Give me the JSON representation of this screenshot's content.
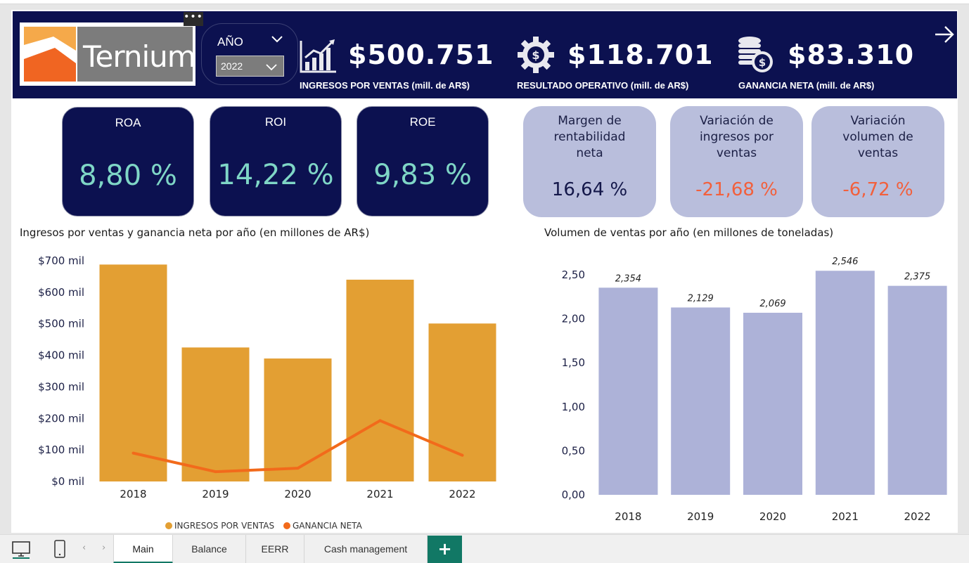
{
  "header": {
    "more_glyph": "•••",
    "logo_text": "Ternium",
    "year_slicer": {
      "label": "AÑO",
      "selected": "2022"
    },
    "kpis": [
      {
        "icon": "bar-chart-growth-icon",
        "value": "$500.751",
        "caption": "INGRESOS POR VENTAS (mill. de AR$)"
      },
      {
        "icon": "gear-dollar-icon",
        "value": "$118.701",
        "caption": "RESULTADO OPERATIVO  (mill. de AR$)"
      },
      {
        "icon": "coins-dollar-icon",
        "value": "$83.310",
        "caption": "GANANCIA NETA (mill. de AR$)"
      }
    ],
    "nav_icon": "arrow-right-icon"
  },
  "cards_dark": [
    {
      "title": "ROA",
      "value": "8,80 %"
    },
    {
      "title": "ROI",
      "value": "14,22 %"
    },
    {
      "title": "ROE",
      "value": "9,83 %"
    }
  ],
  "cards_light": [
    {
      "title": "Margen de rentabilidad neta",
      "value": "16,64 %",
      "value_color": "#14184a"
    },
    {
      "title": "Variación de ingresos por ventas",
      "value": "-21,68 %",
      "value_color": "#f2603c"
    },
    {
      "title": "Variación volumen de ventas",
      "value": "-6,72 %",
      "value_color": "#f2603c"
    }
  ],
  "colors": {
    "navy": "#0c1150",
    "bar_orange": "#e39f33",
    "line_orange": "#f26a1b",
    "bar_lavender": "#adb2d8",
    "teal_value": "#7fd6c6",
    "tab_green": "#117865"
  },
  "chart_data": [
    {
      "type": "bar",
      "title": "Ingresos por ventas y ganancia neta por año (en millones de AR$)",
      "categories": [
        "2018",
        "2019",
        "2020",
        "2021",
        "2022"
      ],
      "series": [
        {
          "name": "INGRESOS POR VENTAS",
          "type": "bar",
          "values": [
            688,
            425,
            390,
            640,
            501
          ]
        },
        {
          "name": "GANANCIA NETA",
          "type": "line",
          "values": [
            90,
            31,
            42,
            193,
            83
          ]
        }
      ],
      "y_ticks": [
        "$0 mil",
        "$100 mil",
        "$200 mil",
        "$300 mil",
        "$400 mil",
        "$500 mil",
        "$600 mil",
        "$700 mil"
      ],
      "ylim": [
        0,
        700
      ],
      "grid": false,
      "legend_position": "bottom"
    },
    {
      "type": "bar",
      "title": "Volumen de ventas por año (en millones de toneladas)",
      "categories": [
        "2018",
        "2019",
        "2020",
        "2021",
        "2022"
      ],
      "values": [
        2.354,
        2.129,
        2.069,
        2.546,
        2.375
      ],
      "data_labels": [
        "2,354",
        "2,129",
        "2,069",
        "2,546",
        "2,375"
      ],
      "y_ticks": [
        "0,00",
        "0,50",
        "1,00",
        "1,50",
        "2,00",
        "2,50"
      ],
      "ylim": [
        0,
        2.5
      ],
      "grid": false
    }
  ],
  "tabs": {
    "items": [
      {
        "label": "Main",
        "active": true
      },
      {
        "label": "Balance",
        "active": false
      },
      {
        "label": "EERR",
        "active": false
      },
      {
        "label": "Cash management",
        "active": false
      }
    ],
    "add_label": "+"
  }
}
